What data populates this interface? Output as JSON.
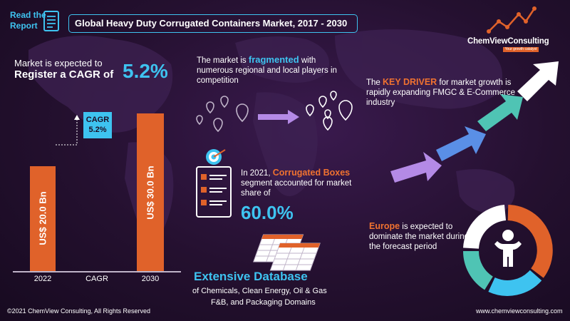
{
  "header": {
    "read_report_line1": "Read the",
    "read_report_line2": "Report",
    "title": "Global Heavy Duty Corrugated Containers Market, 2017 - 2030"
  },
  "logo": {
    "name": "ChemViewConsulting",
    "tagline": "Your growth catalyst"
  },
  "cagr_headline": {
    "line1": "Market is expected to",
    "line2": "Register a CAGR of",
    "value": "5.2%"
  },
  "chart_data": {
    "type": "bar",
    "categories": [
      "2022",
      "CAGR",
      "2030"
    ],
    "values": [
      20.0,
      null,
      30.0
    ],
    "bar_labels": [
      "US$ 20.0 Bn",
      "",
      "US$ 30.0 Bn"
    ],
    "annotation": {
      "label": "CAGR",
      "value": "5.2%"
    },
    "ylim": [
      0,
      34
    ],
    "colors": {
      "bar": "#e0622a",
      "annotation": "#3ec3f0"
    }
  },
  "fragmented": {
    "pre": "The market is ",
    "highlight": "fragmented",
    "rest": "with numerous regional and local players in competition"
  },
  "key_driver": {
    "pre": "The ",
    "highlight": "KEY DRIVER",
    "rest": "for market growth is rapidly expanding FMGC & E-Commerce industry"
  },
  "segment": {
    "pre": "In 2021, ",
    "highlight": "Corrugated Boxes",
    "rest": "segment accounted for market share of",
    "value": "60.0%"
  },
  "database": {
    "title": "Extensive Database",
    "line1": "of Chemicals, Clean Energy, Oil & Gas",
    "line2": "F&B, and Packaging Domains"
  },
  "europe": {
    "highlight": "Europe",
    "rest": " is expected to dominate the market during the forecast period"
  },
  "footer": {
    "copyright": "©2021 ChemView Consulting, All Rights Reserved",
    "website": "www.chemviewconsulting.com"
  },
  "colors": {
    "accent_blue": "#3ec3f0",
    "accent_orange": "#e0622a",
    "accent_purple": "#b48ae6",
    "accent_teal": "#4fc4b4",
    "background": "#24102f"
  },
  "icons": [
    "report-icon",
    "location-pin-icon",
    "arrow-right-icon",
    "growth-arrow-icon",
    "target-checklist-icon",
    "database-sheets-icon",
    "person-icon",
    "logo-graph-icon"
  ]
}
